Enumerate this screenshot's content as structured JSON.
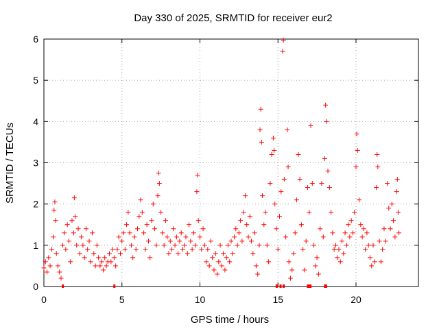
{
  "chart_data": {
    "type": "scatter",
    "title": "Day 330 of 2025, SRMTID for receiver eur2",
    "xlabel": "GPS time / hours",
    "ylabel": "SRMTID / TECUs",
    "xlim": [
      0,
      24
    ],
    "ylim": [
      0,
      6
    ],
    "xticks": [
      0,
      5,
      10,
      15,
      20
    ],
    "yticks": [
      0,
      1,
      2,
      3,
      4,
      5,
      6
    ],
    "grid": true,
    "marker": "plus",
    "series_color": "#ff0000",
    "series": [
      {
        "name": "SRMTID",
        "points": [
          [
            0.0,
            0.45
          ],
          [
            0.1,
            0.6
          ],
          [
            0.2,
            0.35
          ],
          [
            0.3,
            0.7
          ],
          [
            0.4,
            0.5
          ],
          [
            0.5,
            0.9
          ],
          [
            0.6,
            1.2
          ],
          [
            0.65,
            1.85
          ],
          [
            0.7,
            2.05
          ],
          [
            0.75,
            1.6
          ],
          [
            0.8,
            0.8
          ],
          [
            0.9,
            0.5
          ],
          [
            1.0,
            0.35
          ],
          [
            1.1,
            0.2
          ],
          [
            1.2,
            1.0
          ],
          [
            1.3,
            1.3
          ],
          [
            1.4,
            0.9
          ],
          [
            1.5,
            1.5
          ],
          [
            1.6,
            1.1
          ],
          [
            1.7,
            0.6
          ],
          [
            1.8,
            1.6
          ],
          [
            1.9,
            1.3
          ],
          [
            1.95,
            2.15
          ],
          [
            2.0,
            1.7
          ],
          [
            2.1,
            1.0
          ],
          [
            2.2,
            1.4
          ],
          [
            2.3,
            0.8
          ],
          [
            2.4,
            1.2
          ],
          [
            2.5,
            1.0
          ],
          [
            2.6,
            0.7
          ],
          [
            2.7,
            1.4
          ],
          [
            2.8,
            0.9
          ],
          [
            2.9,
            1.1
          ],
          [
            3.0,
            0.6
          ],
          [
            3.1,
            1.3
          ],
          [
            3.2,
            0.8
          ],
          [
            3.3,
            0.5
          ],
          [
            3.4,
            1.0
          ],
          [
            3.5,
            0.7
          ],
          [
            3.6,
            0.5
          ],
          [
            3.7,
            0.6
          ],
          [
            3.8,
            0.4
          ],
          [
            3.9,
            0.7
          ],
          [
            4.0,
            0.5
          ],
          [
            4.1,
            0.6
          ],
          [
            4.2,
            0.8
          ],
          [
            4.3,
            0.6
          ],
          [
            4.4,
            0.9
          ],
          [
            4.5,
            0.7
          ],
          [
            4.6,
            0.5
          ],
          [
            4.7,
            0.9
          ],
          [
            4.8,
            1.2
          ],
          [
            4.9,
            0.8
          ],
          [
            5.0,
            1.1
          ],
          [
            5.1,
            1.3
          ],
          [
            5.2,
            0.9
          ],
          [
            5.3,
            1.5
          ],
          [
            5.4,
            1.8
          ],
          [
            5.5,
            1.3
          ],
          [
            5.6,
            1.0
          ],
          [
            5.7,
            0.7
          ],
          [
            5.8,
            1.2
          ],
          [
            5.9,
            0.9
          ],
          [
            6.0,
            1.4
          ],
          [
            6.1,
            1.7
          ],
          [
            6.2,
            2.1
          ],
          [
            6.3,
            1.8
          ],
          [
            6.4,
            1.3
          ],
          [
            6.5,
            0.9
          ],
          [
            6.6,
            1.5
          ],
          [
            6.7,
            1.1
          ],
          [
            6.8,
            0.7
          ],
          [
            6.9,
            1.6
          ],
          [
            7.0,
            2.0
          ],
          [
            7.1,
            1.4
          ],
          [
            7.2,
            1.0
          ],
          [
            7.3,
            2.2
          ],
          [
            7.35,
            2.75
          ],
          [
            7.4,
            2.5
          ],
          [
            7.5,
            1.8
          ],
          [
            7.6,
            1.3
          ],
          [
            7.7,
            1.0
          ],
          [
            7.8,
            1.6
          ],
          [
            7.9,
            1.2
          ],
          [
            8.0,
            0.8
          ],
          [
            8.1,
            1.1
          ],
          [
            8.2,
            0.9
          ],
          [
            8.3,
            1.4
          ],
          [
            8.4,
            1.0
          ],
          [
            8.5,
            1.2
          ],
          [
            8.6,
            0.8
          ],
          [
            8.7,
            1.1
          ],
          [
            8.8,
            1.3
          ],
          [
            8.9,
            0.9
          ],
          [
            9.0,
            1.0
          ],
          [
            9.1,
            1.2
          ],
          [
            9.2,
            0.8
          ],
          [
            9.3,
            1.5
          ],
          [
            9.4,
            1.1
          ],
          [
            9.5,
            0.9
          ],
          [
            9.6,
            1.3
          ],
          [
            9.7,
            1.0
          ],
          [
            9.8,
            2.3
          ],
          [
            9.85,
            2.7
          ],
          [
            9.9,
            1.6
          ],
          [
            10.0,
            1.2
          ],
          [
            10.1,
            0.9
          ],
          [
            10.2,
            1.4
          ],
          [
            10.3,
            1.0
          ],
          [
            10.4,
            0.6
          ],
          [
            10.5,
            0.9
          ],
          [
            10.6,
            0.5
          ],
          [
            10.7,
            1.1
          ],
          [
            10.8,
            0.7
          ],
          [
            10.9,
            0.4
          ],
          [
            11.0,
            0.8
          ],
          [
            11.1,
            0.3
          ],
          [
            11.2,
            0.6
          ],
          [
            11.3,
            1.0
          ],
          [
            11.4,
            0.5
          ],
          [
            11.5,
            0.8
          ],
          [
            11.6,
            0.4
          ],
          [
            11.7,
            0.7
          ],
          [
            11.8,
            1.0
          ],
          [
            11.9,
            0.6
          ],
          [
            12.0,
            1.1
          ],
          [
            12.1,
            0.8
          ],
          [
            12.2,
            1.2
          ],
          [
            12.3,
            1.4
          ],
          [
            12.4,
            1.0
          ],
          [
            12.5,
            1.3
          ],
          [
            12.6,
            1.6
          ],
          [
            12.7,
            1.1
          ],
          [
            12.8,
            1.8
          ],
          [
            12.9,
            2.2
          ],
          [
            13.0,
            1.5
          ],
          [
            13.1,
            1.2
          ],
          [
            13.2,
            1.7
          ],
          [
            13.3,
            1.1
          ],
          [
            13.4,
            0.8
          ],
          [
            13.5,
            1.3
          ],
          [
            13.6,
            0.5
          ],
          [
            13.7,
            0.3
          ],
          [
            13.8,
            1.0
          ],
          [
            13.85,
            3.8
          ],
          [
            13.9,
            4.3
          ],
          [
            13.95,
            3.5
          ],
          [
            14.0,
            2.2
          ],
          [
            14.1,
            1.5
          ],
          [
            14.2,
            1.8
          ],
          [
            14.3,
            1.0
          ],
          [
            14.4,
            0.6
          ],
          [
            14.5,
            2.5
          ],
          [
            14.6,
            3.2
          ],
          [
            14.7,
            3.6
          ],
          [
            14.75,
            3.3
          ],
          [
            14.8,
            2.0
          ],
          [
            14.9,
            1.4
          ],
          [
            15.0,
            0.9
          ],
          [
            15.1,
            1.7
          ],
          [
            15.2,
            2.3
          ],
          [
            15.3,
            5.7
          ],
          [
            15.35,
            5.97
          ],
          [
            15.4,
            2.6
          ],
          [
            15.5,
            1.2
          ],
          [
            15.6,
            3.8
          ],
          [
            15.65,
            2.9
          ],
          [
            15.7,
            0.6
          ],
          [
            15.8,
            0.2
          ],
          [
            15.9,
            0.4
          ],
          [
            16.0,
            0.8
          ],
          [
            16.1,
            1.3
          ],
          [
            16.2,
            2.1
          ],
          [
            16.3,
            3.2
          ],
          [
            16.4,
            2.6
          ],
          [
            16.5,
            1.5
          ],
          [
            16.6,
            0.9
          ],
          [
            16.7,
            0.4
          ],
          [
            16.8,
            1.1
          ],
          [
            16.9,
            2.4
          ],
          [
            17.0,
            1.8
          ],
          [
            17.1,
            3.9
          ],
          [
            17.2,
            2.5
          ],
          [
            17.3,
            1.0
          ],
          [
            17.4,
            0.5
          ],
          [
            17.5,
            0.7
          ],
          [
            17.6,
            0.3
          ],
          [
            17.7,
            1.4
          ],
          [
            17.8,
            2.5
          ],
          [
            17.9,
            1.2
          ],
          [
            18.0,
            3.1
          ],
          [
            18.05,
            4.4
          ],
          [
            18.1,
            4.0
          ],
          [
            18.2,
            2.8
          ],
          [
            18.3,
            2.4
          ],
          [
            18.4,
            1.8
          ],
          [
            18.5,
            1.3
          ],
          [
            18.6,
            0.9
          ],
          [
            18.7,
            1.0
          ],
          [
            18.8,
            0.7
          ],
          [
            18.9,
            0.9
          ],
          [
            19.0,
            0.6
          ],
          [
            19.1,
            1.1
          ],
          [
            19.2,
            0.8
          ],
          [
            19.3,
            1.3
          ],
          [
            19.4,
            1.0
          ],
          [
            19.5,
            1.5
          ],
          [
            19.6,
            1.2
          ],
          [
            19.7,
            1.6
          ],
          [
            19.8,
            1.3
          ],
          [
            19.9,
            1.8
          ],
          [
            20.0,
            2.9
          ],
          [
            20.05,
            3.7
          ],
          [
            20.1,
            3.3
          ],
          [
            20.2,
            2.1
          ],
          [
            20.3,
            1.5
          ],
          [
            20.4,
            1.2
          ],
          [
            20.5,
            1.4
          ],
          [
            20.6,
            0.9
          ],
          [
            20.7,
            1.3
          ],
          [
            20.8,
            1.0
          ],
          [
            20.9,
            0.7
          ],
          [
            21.0,
            0.5
          ],
          [
            21.1,
            1.0
          ],
          [
            21.2,
            0.6
          ],
          [
            21.3,
            2.4
          ],
          [
            21.35,
            3.2
          ],
          [
            21.4,
            2.9
          ],
          [
            21.5,
            1.1
          ],
          [
            21.6,
            0.6
          ],
          [
            21.7,
            0.9
          ],
          [
            21.8,
            1.4
          ],
          [
            21.9,
            1.1
          ],
          [
            22.0,
            2.5
          ],
          [
            22.1,
            1.9
          ],
          [
            22.2,
            1.4
          ],
          [
            22.3,
            2.0
          ],
          [
            22.4,
            1.6
          ],
          [
            22.5,
            1.2
          ],
          [
            22.6,
            2.3
          ],
          [
            22.65,
            2.6
          ],
          [
            22.7,
            1.8
          ],
          [
            22.75,
            1.3
          ]
        ],
        "zero_segments": [
          [
            1.15,
            1.25
          ],
          [
            4.45,
            4.55
          ],
          [
            14.85,
            14.95
          ],
          [
            15.1,
            15.2
          ],
          [
            15.3,
            15.4
          ],
          [
            16.85,
            17.15
          ],
          [
            17.95,
            18.15
          ]
        ]
      }
    ]
  }
}
